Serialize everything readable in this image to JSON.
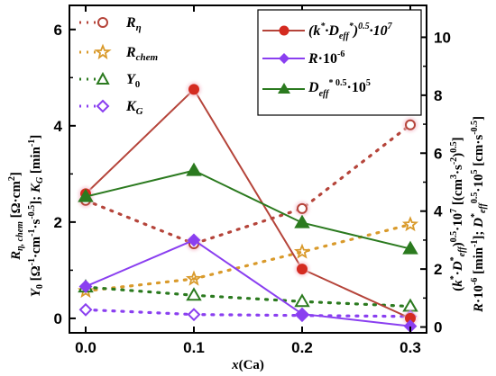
{
  "chart_data": {
    "type": "line",
    "x": [
      0.0,
      0.1,
      0.2,
      0.3
    ],
    "x_tick_labels": [
      "0.0",
      "0.1",
      "0.2",
      "0.3"
    ],
    "xlabel": "x(Ca)",
    "xlim": [
      -0.015,
      0.315
    ],
    "left_axis": {
      "ylim": [
        -0.3,
        6.5
      ],
      "ticks": [
        0,
        2,
        4,
        6
      ],
      "tick_labels": [
        "0",
        "2",
        "4",
        "6"
      ],
      "ylabel_line1": "R_η, chem [Ω·cm²]",
      "ylabel_line2": "Y₀ [Ω⁻¹·cm⁻¹·s⁻⁰·⁵]; K_G [min⁻¹]"
    },
    "right_axis": {
      "ylim": [
        -0.2,
        11.1
      ],
      "ticks": [
        0,
        2,
        4,
        6,
        8,
        10
      ],
      "tick_labels": [
        "0",
        "2",
        "4",
        "6",
        "8",
        "10"
      ],
      "ylabel_line1": "(k*·D*eff)^0.5·10⁷ [(cm³·s⁻²)^0.5]",
      "ylabel_line2": "R·10⁻⁶ [min⁻¹]; D*eff^0.5·10⁵ [cm·s⁻⁰·⁵]"
    },
    "series": [
      {
        "name": "R_η",
        "axis": "left",
        "style": "dotted",
        "marker": "circle-open",
        "color": "#b5443a",
        "values": [
          2.45,
          1.55,
          2.28,
          4.02
        ]
      },
      {
        "name": "R_chem",
        "axis": "left",
        "style": "dotted",
        "marker": "star-open",
        "color": "#d99a2b",
        "values": [
          0.57,
          0.82,
          1.38,
          1.95
        ]
      },
      {
        "name": "Y_0",
        "axis": "left",
        "style": "dotted",
        "marker": "triangle-open",
        "color": "#2b7a1f",
        "values": [
          0.65,
          0.48,
          0.35,
          0.25
        ]
      },
      {
        "name": "K_G",
        "axis": "left",
        "style": "dotted",
        "marker": "diamond-open",
        "color": "#8a3ff0",
        "values": [
          0.18,
          0.08,
          0.06,
          0.04
        ]
      },
      {
        "name": "(k*·D_eff*)^0.5·10^7",
        "axis": "right",
        "style": "solid",
        "marker": "circle-filled",
        "color": "#b5443a",
        "values": [
          4.6,
          8.2,
          2.0,
          0.3
        ]
      },
      {
        "name": "R·10^-6",
        "axis": "right",
        "style": "solid",
        "marker": "diamond-filled",
        "color": "#8a3ff0",
        "values": [
          1.4,
          3.0,
          0.45,
          0.03
        ]
      },
      {
        "name": "D_eff*^0.5·10^5",
        "axis": "right",
        "style": "solid",
        "marker": "triangle-filled",
        "color": "#2b7a1f",
        "values": [
          4.5,
          5.4,
          3.6,
          2.7
        ]
      }
    ],
    "legends": [
      {
        "position": "top-left",
        "entries": [
          "R_η",
          "R_chem",
          "Y_0",
          "K_G"
        ]
      },
      {
        "position": "top-right",
        "entries": [
          "(k*·D_eff*)^0.5·10^7",
          "R·10^-6",
          "D_eff*^0.5·10^5"
        ]
      }
    ],
    "grid": false
  }
}
